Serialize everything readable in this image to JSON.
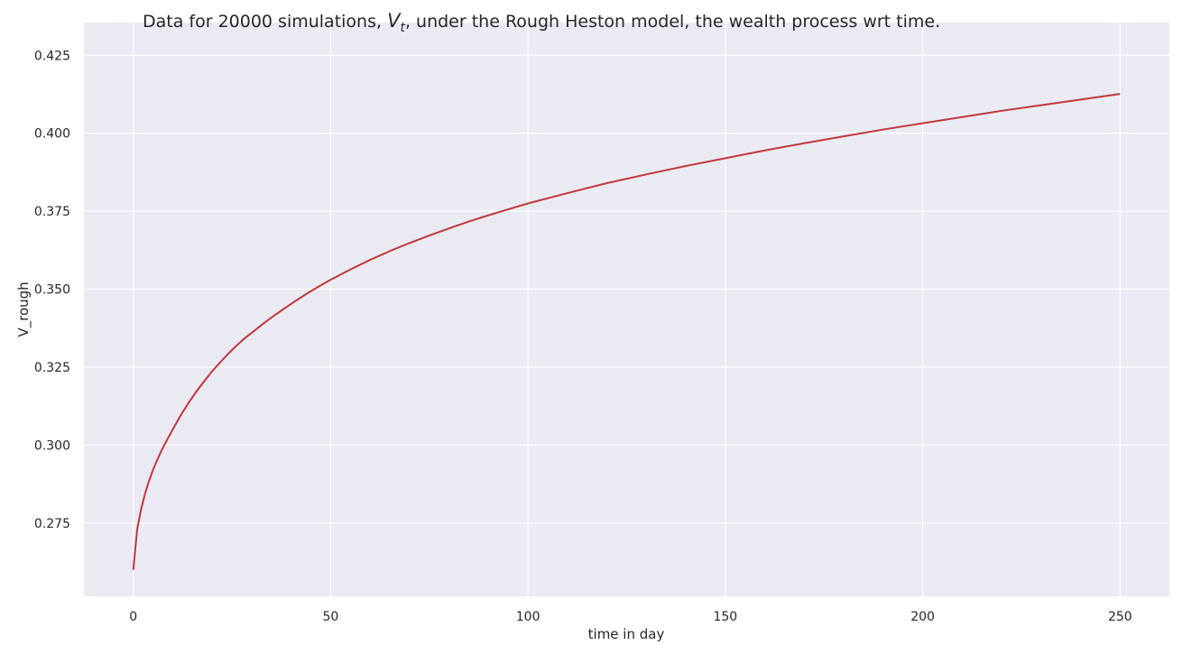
{
  "chart_data": {
    "type": "line",
    "title_before": "Data for 20000 simulations, ",
    "title_var": "V",
    "title_sub": "t",
    "title_after": ", under the Rough Heston model, the wealth process wrt time.",
    "xlabel": "time in day",
    "ylabel": "V_rough",
    "xlim": [
      -12.5,
      262.5
    ],
    "ylim": [
      0.2515,
      0.4355
    ],
    "xticks": [
      0,
      50,
      100,
      150,
      200,
      250
    ],
    "yticks": [
      0.275,
      0.3,
      0.325,
      0.35,
      0.375,
      0.4,
      0.425
    ],
    "xtick_labels": [
      "0",
      "50",
      "100",
      "150",
      "200",
      "250"
    ],
    "ytick_labels": [
      "0.275",
      "0.300",
      "0.325",
      "0.350",
      "0.375",
      "0.400",
      "0.425"
    ],
    "grid": true,
    "background_color": "#eaeaf2",
    "grid_color": "#ffffff",
    "series": [
      {
        "color": "#c43638",
        "x": [
          0,
          1,
          2,
          3,
          4,
          5,
          6,
          7,
          8,
          9,
          10,
          12,
          14,
          16,
          18,
          20,
          22,
          24,
          26,
          28,
          30,
          33,
          36,
          40,
          44,
          48,
          50,
          55,
          60,
          65,
          70,
          75,
          80,
          85,
          90,
          95,
          100,
          110,
          120,
          130,
          140,
          150,
          160,
          170,
          180,
          190,
          200,
          210,
          220,
          230,
          240,
          250
        ],
        "y": [
          0.26,
          0.273,
          0.2795,
          0.2845,
          0.2885,
          0.292,
          0.295,
          0.2978,
          0.3003,
          0.3027,
          0.305,
          0.3095,
          0.3135,
          0.3172,
          0.3205,
          0.3237,
          0.3265,
          0.3292,
          0.3317,
          0.334,
          0.336,
          0.339,
          0.3418,
          0.3453,
          0.3486,
          0.3516,
          0.353,
          0.3563,
          0.3594,
          0.3622,
          0.3648,
          0.3672,
          0.3695,
          0.3717,
          0.3737,
          0.3756,
          0.3775,
          0.3808,
          0.384,
          0.3868,
          0.3895,
          0.392,
          0.3945,
          0.3968,
          0.399,
          0.4012,
          0.4032,
          0.4052,
          0.4072,
          0.409,
          0.4108,
          0.4126
        ]
      }
    ]
  }
}
